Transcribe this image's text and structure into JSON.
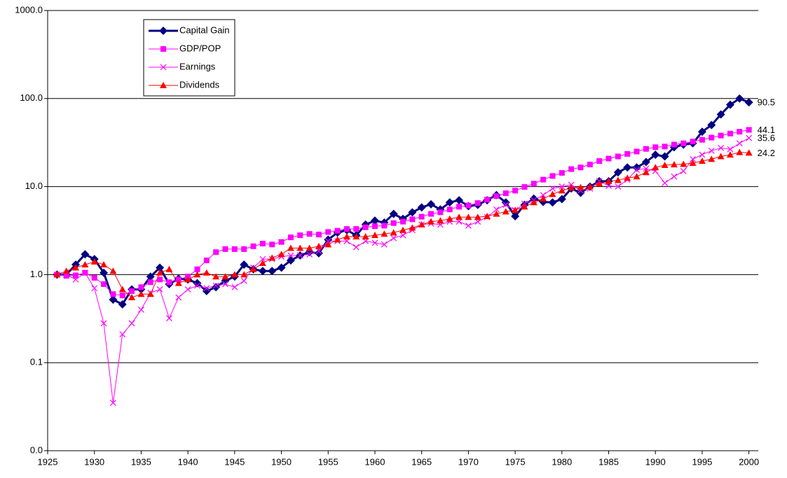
{
  "chart_data": {
    "type": "line",
    "log_y": true,
    "grid": true,
    "legend": "upper left",
    "x": [
      1926,
      1927,
      1928,
      1929,
      1930,
      1931,
      1932,
      1933,
      1934,
      1935,
      1936,
      1937,
      1938,
      1939,
      1940,
      1941,
      1942,
      1943,
      1944,
      1945,
      1946,
      1947,
      1948,
      1949,
      1950,
      1951,
      1952,
      1953,
      1954,
      1955,
      1956,
      1957,
      1958,
      1959,
      1960,
      1961,
      1962,
      1963,
      1964,
      1965,
      1966,
      1967,
      1968,
      1969,
      1970,
      1971,
      1972,
      1973,
      1974,
      1975,
      1976,
      1977,
      1978,
      1979,
      1980,
      1981,
      1982,
      1983,
      1984,
      1985,
      1986,
      1987,
      1988,
      1989,
      1990,
      1991,
      1992,
      1993,
      1994,
      1995,
      1996,
      1997,
      1998,
      1999,
      2000
    ],
    "xlim": [
      1925,
      2001
    ],
    "xticks": [
      1925,
      1930,
      1935,
      1940,
      1945,
      1950,
      1955,
      1960,
      1965,
      1970,
      1975,
      1980,
      1985,
      1990,
      1995,
      2000
    ],
    "ylim": [
      0.01,
      1000
    ],
    "yticks": [
      {
        "value": 0.01,
        "label": "0.0"
      },
      0.1,
      {
        "value": 1,
        "label": "1.0"
      },
      {
        "value": 10,
        "label": "10.0"
      },
      {
        "value": 100,
        "label": "100.0"
      },
      {
        "value": 1000,
        "label": "1000.0"
      }
    ],
    "series": [
      {
        "name": "Capital Gain",
        "color": "#000080",
        "marker": "diamond",
        "line_width": 3,
        "values": [
          1.0,
          1.0,
          1.3,
          1.7,
          1.5,
          1.05,
          0.52,
          0.46,
          0.68,
          0.68,
          0.95,
          1.2,
          0.78,
          0.9,
          0.88,
          0.8,
          0.65,
          0.72,
          0.85,
          0.95,
          1.3,
          1.15,
          1.1,
          1.1,
          1.2,
          1.45,
          1.65,
          1.8,
          1.75,
          2.5,
          3.0,
          3.2,
          2.8,
          3.7,
          4.1,
          3.9,
          4.9,
          4.3,
          5.1,
          5.8,
          6.3,
          5.5,
          6.6,
          7.0,
          6.0,
          6.2,
          7.0,
          8.0,
          6.6,
          4.6,
          6.2,
          7.3,
          6.7,
          6.6,
          7.2,
          9.5,
          8.5,
          10.0,
          11.5,
          11.5,
          14.5,
          16.5,
          16.5,
          19,
          23,
          22,
          28,
          30,
          31,
          42,
          50,
          66,
          85,
          100,
          90.5
        ]
      },
      {
        "name": "GDP/POP",
        "color": "#ff00ff",
        "marker": "square",
        "line_width": 1,
        "values": [
          1.0,
          0.97,
          0.98,
          1.05,
          0.92,
          0.78,
          0.6,
          0.58,
          0.65,
          0.72,
          0.82,
          0.88,
          0.82,
          0.88,
          0.95,
          1.15,
          1.45,
          1.8,
          1.95,
          1.95,
          1.95,
          2.1,
          2.25,
          2.2,
          2.35,
          2.65,
          2.8,
          2.9,
          2.85,
          3.05,
          3.15,
          3.3,
          3.3,
          3.45,
          3.55,
          3.6,
          3.85,
          4.0,
          4.25,
          4.55,
          4.9,
          5.1,
          5.5,
          5.9,
          6.1,
          6.5,
          7.1,
          7.8,
          8.4,
          9.0,
          9.9,
          10.8,
          12.0,
          13.2,
          14.3,
          15.8,
          16.5,
          17.8,
          19.5,
          20.8,
          22,
          23.5,
          25,
          26.8,
          28,
          28.5,
          30,
          31,
          32.5,
          34,
          36,
          38,
          40,
          42,
          44.1
        ]
      },
      {
        "name": "Earnings",
        "color": "#ff00ff",
        "marker": "x",
        "line_width": 1,
        "values": [
          1.0,
          1.0,
          0.88,
          1.05,
          0.7,
          0.28,
          0.035,
          0.21,
          0.28,
          0.4,
          0.62,
          0.68,
          0.32,
          0.55,
          0.68,
          0.75,
          0.7,
          0.75,
          0.78,
          0.72,
          0.85,
          1.2,
          1.5,
          1.5,
          1.6,
          1.65,
          1.65,
          1.7,
          1.85,
          2.4,
          2.4,
          2.4,
          2.05,
          2.4,
          2.3,
          2.2,
          2.6,
          2.8,
          3.2,
          3.7,
          3.8,
          3.7,
          4.0,
          4.0,
          3.6,
          4.0,
          4.5,
          5.5,
          6.2,
          5.4,
          6.4,
          7.0,
          8.0,
          9.5,
          10.0,
          10.5,
          9.0,
          9.5,
          11.5,
          10.2,
          10.0,
          12.0,
          15.5,
          16.0,
          15.0,
          11.0,
          13.0,
          15.0,
          20.5,
          23.0,
          25.5,
          27.5,
          26.5,
          31.0,
          35.6
        ]
      },
      {
        "name": "Dividends",
        "color": "#ff0000",
        "marker": "triangle",
        "line_width": 1,
        "values": [
          1.0,
          1.1,
          1.2,
          1.3,
          1.4,
          1.3,
          1.1,
          0.68,
          0.55,
          0.6,
          0.6,
          1.05,
          1.15,
          0.8,
          0.88,
          1.0,
          1.05,
          0.95,
          0.95,
          1.0,
          1.0,
          1.15,
          1.35,
          1.55,
          1.7,
          2.0,
          2.0,
          2.0,
          2.1,
          2.2,
          2.5,
          2.7,
          2.7,
          2.7,
          2.8,
          2.9,
          3.0,
          3.2,
          3.4,
          3.7,
          4.0,
          4.1,
          4.3,
          4.5,
          4.5,
          4.5,
          4.6,
          4.9,
          5.2,
          5.4,
          5.9,
          6.6,
          7.3,
          8.2,
          9.0,
          9.7,
          9.8,
          10.0,
          10.8,
          11.5,
          11.8,
          12.5,
          13.0,
          14.5,
          16.5,
          17.5,
          17.8,
          18.0,
          18.5,
          19.5,
          20.5,
          22,
          23,
          24.5,
          24.2
        ]
      }
    ]
  }
}
